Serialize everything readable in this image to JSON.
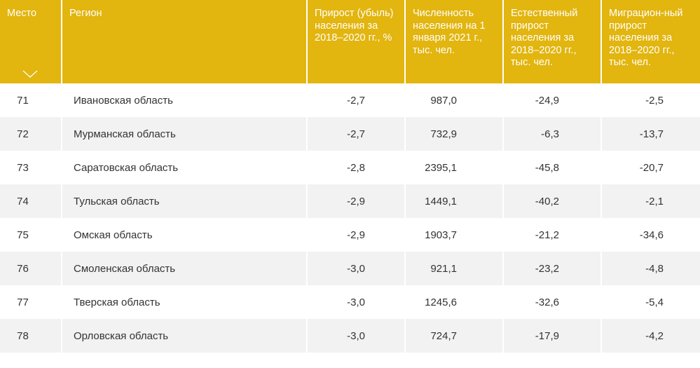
{
  "header": {
    "place": "Место",
    "region": "Регион",
    "growth": "Прирост (убыль) населения за 2018–2020 гг., %",
    "population": "Численность населения на 1 января 2021 г., тыс. чел.",
    "natural": "Естественный прирост населения за 2018–2020 гг., тыс. чел.",
    "migration": "Миграцион-ный прирост населения за 2018–2020 гг., тыс. чел.",
    "sort_icon": "chevron-down-icon"
  },
  "rows": [
    {
      "place": "71",
      "region": "Ивановская область",
      "growth": "-2,7",
      "population": "987,0",
      "natural": "-24,9",
      "migration": "-2,5"
    },
    {
      "place": "72",
      "region": "Мурманская область",
      "growth": "-2,7",
      "population": "732,9",
      "natural": "-6,3",
      "migration": "-13,7"
    },
    {
      "place": "73",
      "region": "Саратовская область",
      "growth": "-2,8",
      "population": "2395,1",
      "natural": "-45,8",
      "migration": "-20,7"
    },
    {
      "place": "74",
      "region": "Тульская область",
      "growth": "-2,9",
      "population": "1449,1",
      "natural": "-40,2",
      "migration": "-2,1"
    },
    {
      "place": "75",
      "region": "Омская область",
      "growth": "-2,9",
      "population": "1903,7",
      "natural": "-21,2",
      "migration": "-34,6"
    },
    {
      "place": "76",
      "region": "Смоленская область",
      "growth": "-3,0",
      "population": "921,1",
      "natural": "-23,2",
      "migration": "-4,8"
    },
    {
      "place": "77",
      "region": "Тверская область",
      "growth": "-3,0",
      "population": "1245,6",
      "natural": "-32,6",
      "migration": "-5,4"
    },
    {
      "place": "78",
      "region": "Орловская область",
      "growth": "-3,0",
      "population": "724,7",
      "natural": "-17,9",
      "migration": "-4,2"
    }
  ],
  "colors": {
    "header_bg": "#e2b50f",
    "row_alt_bg": "#f2f2f2",
    "text": "#333333"
  }
}
